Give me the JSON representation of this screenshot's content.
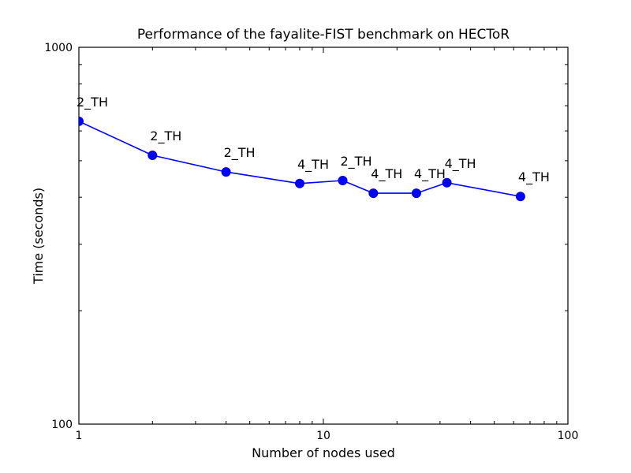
{
  "figure": {
    "background": "#ffffff"
  },
  "chart_data": {
    "type": "line",
    "title": "Performance of the fayalite-FIST benchmark on HECToR",
    "xlabel": "Number of nodes used",
    "ylabel": "Time (seconds)",
    "xscale": "log",
    "yscale": "log",
    "xlim": [
      1,
      100
    ],
    "ylim": [
      100,
      1000
    ],
    "x_major_ticks": [
      1,
      10,
      100
    ],
    "x_major_tick_labels": [
      "1",
      "10",
      "100"
    ],
    "x_minor_ticks": [
      2,
      3,
      4,
      5,
      6,
      7,
      8,
      9,
      20,
      30,
      40,
      50,
      60,
      70,
      80,
      90
    ],
    "y_major_ticks": [
      100,
      1000
    ],
    "y_major_tick_labels": [
      "100",
      "1000"
    ],
    "y_minor_ticks": [
      200,
      300,
      400,
      500,
      600,
      700,
      800,
      900
    ],
    "grid": false,
    "legend": "none",
    "series": [
      {
        "x": [
          1,
          2,
          4,
          8,
          12,
          16,
          24,
          32,
          64
        ],
        "y": [
          636,
          517,
          467,
          435,
          443,
          410,
          410,
          437,
          402
        ],
        "point_labels": [
          "2_TH",
          "2_TH",
          "2_TH",
          "4_TH",
          "2_TH",
          "4_TH",
          "4_TH",
          "4_TH",
          "4_TH"
        ],
        "line_color": "#0000ff",
        "marker": "circle",
        "marker_color": "#0000ff",
        "marker_edge_color": "#0000cc"
      }
    ],
    "axis_color": "#000000",
    "text_color": "#000000"
  }
}
